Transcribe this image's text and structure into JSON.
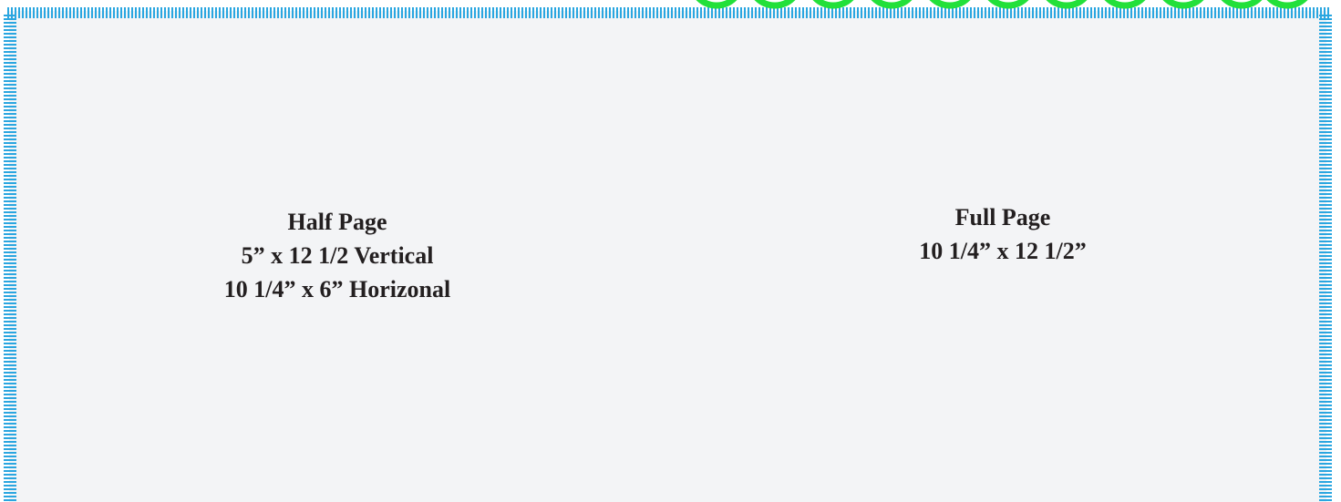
{
  "blocks": [
    {
      "lines": [
        "Half Page",
        "5” x 12 1/2 Vertical",
        "10 1/4” x 6” Horizonal"
      ]
    },
    {
      "lines": [
        "Full Page",
        "10 1/4” x 12 1/2”"
      ]
    }
  ]
}
